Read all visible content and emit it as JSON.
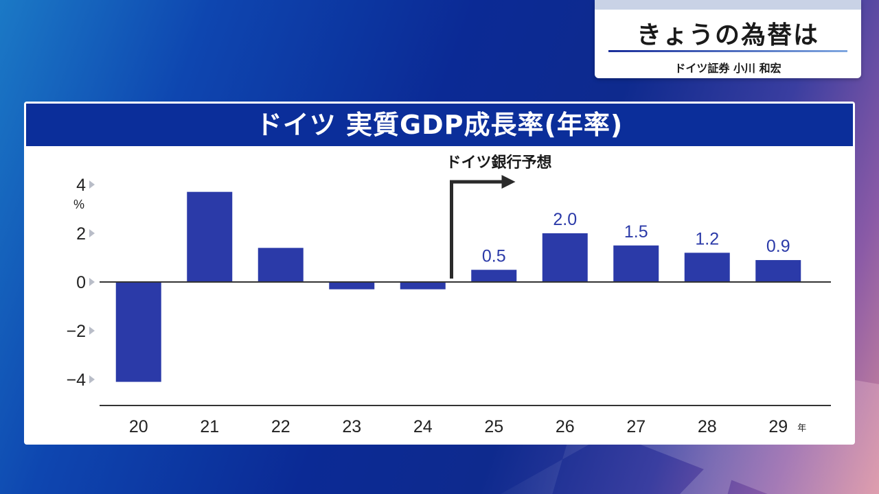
{
  "header_card": {
    "title": "きょうの為替は",
    "presenter": "ドイツ証券 小川 和宏"
  },
  "chart_data": {
    "type": "bar",
    "title": "ドイツ 実質GDP成長率(年率)",
    "y_unit": "%",
    "x_unit": "年",
    "categories": [
      "20",
      "21",
      "22",
      "23",
      "24",
      "25",
      "26",
      "27",
      "28",
      "29"
    ],
    "values": [
      -4.1,
      3.7,
      1.4,
      -0.3,
      -0.3,
      0.5,
      2.0,
      1.5,
      1.2,
      0.9
    ],
    "data_labels": [
      "",
      "",
      "",
      "",
      "",
      "0.5",
      "2.0",
      "1.5",
      "1.2",
      "0.9"
    ],
    "y_ticks": [
      "4",
      "2",
      "0",
      "−2",
      "−4"
    ],
    "y_tick_values": [
      4,
      2,
      0,
      -2,
      -4
    ],
    "ylim": [
      -5,
      4
    ],
    "forecast_annotation": "ドイツ銀行予想",
    "forecast_start_index": 5,
    "bar_color": "#2b3aa8",
    "grid": false
  }
}
